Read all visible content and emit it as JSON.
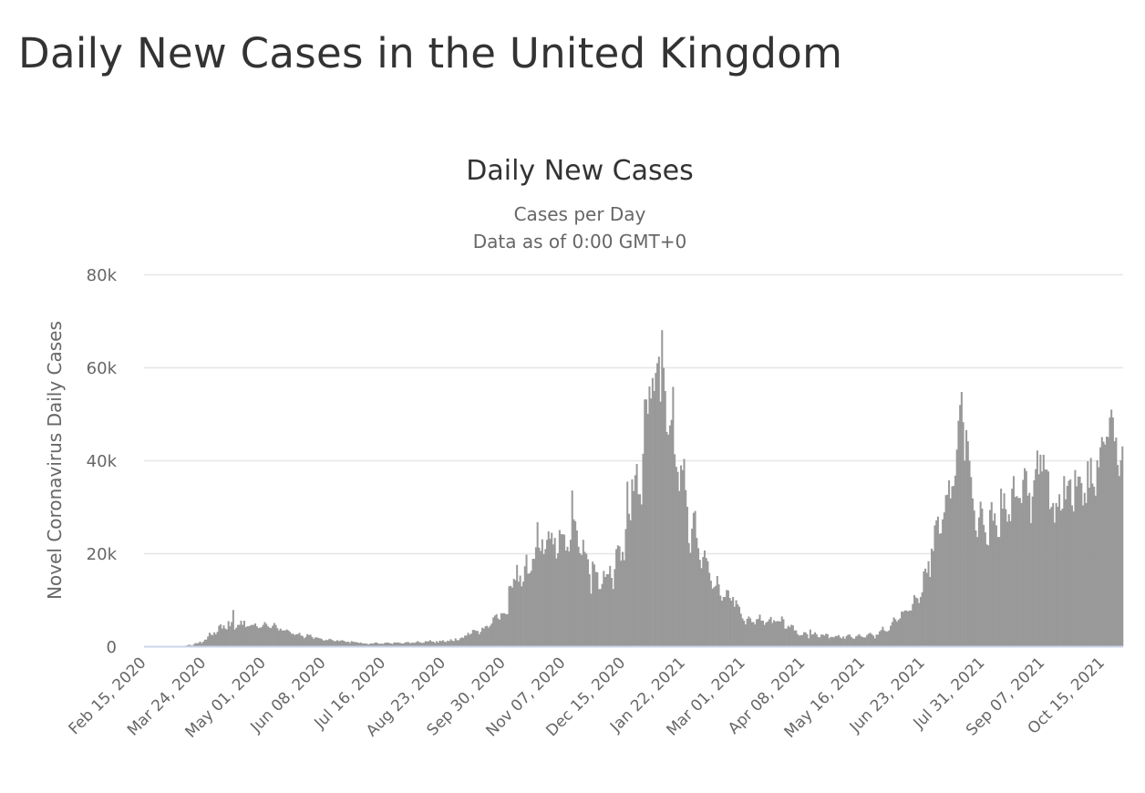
{
  "page": {
    "title": "Daily New Cases in the United Kingdom"
  },
  "chart_data": {
    "type": "bar",
    "title": "Daily New Cases",
    "subtitle": [
      "Cases per Day",
      "Data as of 0:00 GMT+0"
    ],
    "ylabel": "Novel Coronavirus Daily Cases",
    "xlabel": "",
    "ylim": [
      0,
      80000
    ],
    "yticks": [
      0,
      20000,
      40000,
      60000,
      80000
    ],
    "ytick_labels": [
      "0",
      "20k",
      "40k",
      "60k",
      "80k"
    ],
    "grid": true,
    "start_date": "Feb 15, 2020",
    "end_date": "Oct 27, 2021",
    "xtick_every_days": 38,
    "xtick_labels": [
      "Feb 15, 2020",
      "Mar 24, 2020",
      "May 01, 2020",
      "Jun 08, 2020",
      "Jul 16, 2020",
      "Aug 23, 2020",
      "Sep 30, 2020",
      "Nov 07, 2020",
      "Dec 15, 2020",
      "Jan 22, 2021",
      "Mar 01, 2021",
      "Apr 08, 2021",
      "May 16, 2021",
      "Jun 23, 2021",
      "Jul 31, 2021",
      "Sep 07, 2021",
      "Oct 15, 2021"
    ],
    "bar_color": "#999999",
    "values": [
      0,
      0,
      0,
      0,
      0,
      0,
      0,
      0,
      0,
      4,
      0,
      3,
      2,
      3,
      12,
      13,
      13,
      4,
      11,
      34,
      30,
      48,
      43,
      67,
      48,
      60,
      130,
      210,
      340,
      250,
      150,
      400,
      680,
      640,
      710,
      1000,
      670,
      970,
      1400,
      1450,
      2100,
      2900,
      2500,
      2400,
      3000,
      2600,
      3100,
      4400,
      4700,
      3800,
      4500,
      3800,
      3600,
      5400,
      4300,
      5200,
      7800,
      3600,
      4000,
      4600,
      4600,
      5500,
      4600,
      5500,
      4100,
      4300,
      4300,
      4500,
      4600,
      4600,
      4900,
      4300,
      3900,
      4000,
      4100,
      4600,
      5200,
      4800,
      4300,
      4000,
      3900,
      4400,
      5000,
      4600,
      3900,
      3400,
      3800,
      3400,
      3400,
      3400,
      3600,
      3400,
      3100,
      2700,
      2700,
      2400,
      2600,
      2600,
      2900,
      2300,
      2200,
      1700,
      2000,
      2600,
      2400,
      2500,
      2000,
      1600,
      1900,
      1900,
      1800,
      1700,
      1600,
      1300,
      1200,
      1400,
      1300,
      1600,
      1500,
      1300,
      1100,
      1100,
      1300,
      1100,
      1200,
      1300,
      1200,
      1000,
      900,
      1000,
      700,
      1100,
      1000,
      900,
      900,
      800,
      700,
      800,
      600,
      600,
      600,
      500,
      400,
      600,
      600,
      600,
      800,
      800,
      600,
      500,
      600,
      500,
      700,
      800,
      800,
      700,
      600,
      500,
      800,
      800,
      800,
      800,
      700,
      600,
      600,
      800,
      900,
      900,
      700,
      700,
      800,
      700,
      900,
      1100,
      900,
      800,
      700,
      800,
      1100,
      1000,
      1100,
      1300,
      1000,
      1000,
      700,
      1100,
      800,
      1200,
      1100,
      1300,
      1000,
      900,
      1200,
      1100,
      1500,
      1200,
      1100,
      1700,
      1300,
      1300,
      1700,
      1900,
      1800,
      2300,
      2300,
      2900,
      2500,
      2700,
      3500,
      3500,
      3300,
      3300,
      2600,
      3100,
      4000,
      3800,
      4300,
      4400,
      4000,
      4400,
      4900,
      6200,
      6600,
      6900,
      6000,
      5700,
      7100,
      7100,
      7100,
      6900,
      6900,
      12900,
      13000,
      12600,
      14500,
      14200,
      17500,
      13900,
      15200,
      12900,
      13900,
      17200,
      19700,
      15600,
      15700,
      16200,
      18800,
      18800,
      21300,
      26700,
      21200,
      20500,
      23000,
      19800,
      20900,
      22900,
      24700,
      23100,
      24400,
      21900,
      23300,
      18900,
      20000,
      25000,
      24100,
      24100,
      24000,
      20600,
      21400,
      20400,
      22900,
      33500,
      27300,
      26900,
      24900,
      21400,
      20000,
      19600,
      22900,
      20300,
      19900,
      18700,
      15500,
      11300,
      18200,
      17600,
      16000,
      15900,
      12300,
      12300,
      13400,
      16200,
      14900,
      15500,
      15500,
      17300,
      14700,
      12300,
      16600,
      20900,
      21700,
      21500,
      18400,
      20300,
      18500,
      25200,
      35400,
      28500,
      27100,
      35900,
      33400,
      36800,
      39200,
      32700,
      32700,
      30500,
      41400,
      53100,
      53100,
      50000,
      55900,
      53300,
      57700,
      54900,
      58800,
      60900,
      62300,
      52600,
      68000,
      59900,
      54900,
      46100,
      45500,
      47500,
      48700,
      55800,
      41300,
      38600,
      37500,
      33400,
      38900,
      37900,
      40300,
      33600,
      30000,
      22200,
      20100,
      25300,
      28700,
      29100,
      23300,
      21100,
      18600,
      16800,
      19200,
      20600,
      19000,
      18300,
      15800,
      14100,
      12400,
      12700,
      13000,
      15100,
      13300,
      10900,
      9800,
      10600,
      10600,
      12100,
      12000,
      10400,
      9800,
      10600,
      8500,
      9900,
      9000,
      8500,
      7000,
      6000,
      5500,
      4700,
      5900,
      6400,
      6000,
      5200,
      5200,
      4700,
      5800,
      5900,
      6800,
      5500,
      5500,
      4600,
      5100,
      5300,
      5800,
      6300,
      5000,
      5600,
      5300,
      5400,
      5400,
      5300,
      6400,
      5800,
      3800,
      3800,
      4400,
      4100,
      4600,
      4500,
      3400,
      3400,
      2600,
      2300,
      2400,
      2400,
      3000,
      3000,
      2600,
      1700,
      3600,
      2500,
      2600,
      3000,
      2600,
      2000,
      1900,
      2500,
      2500,
      2300,
      2700,
      2600,
      1700,
      2000,
      2000,
      1900,
      2200,
      2200,
      2400,
      1900,
      1700,
      2100,
      1600,
      2200,
      2500,
      2500,
      2000,
      1700,
      1600,
      2100,
      2300,
      2600,
      2200,
      2000,
      1900,
      1900,
      2400,
      2700,
      2900,
      2600,
      2300,
      1700,
      2500,
      2500,
      3200,
      3500,
      4200,
      3400,
      3200,
      3200,
      3400,
      4400,
      5200,
      6200,
      5800,
      5300,
      5700,
      6000,
      7500,
      7400,
      7700,
      7700,
      7500,
      7700,
      7700,
      9100,
      11000,
      10500,
      10300,
      9300,
      10600,
      11600,
      16100,
      16700,
      15800,
      18300,
      14900,
      21000,
      20500,
      26000,
      27100,
      27900,
      24200,
      24300,
      27300,
      28800,
      32500,
      32600,
      35700,
      31800,
      34400,
      34500,
      36700,
      42300,
      48500,
      51900,
      54700,
      48200,
      39900,
      46500,
      44100,
      39900,
      36400,
      31800,
      29200,
      24900,
      23500,
      27700,
      31100,
      29600,
      26100,
      24500,
      21900,
      21700,
      29300,
      31000,
      27000,
      28600,
      26000,
      23500,
      23500,
      33900,
      29600,
      32900,
      29500,
      26800,
      28400,
      26900,
      33900,
      36600,
      32100,
      32300,
      31900,
      31900,
      30800,
      35800,
      38300,
      37700,
      32400,
      33000,
      26500,
      32200,
      35700,
      38100,
      42100,
      37000,
      41200,
      37600,
      41200,
      38000,
      38000,
      37600,
      29500,
      30000,
      30800,
      26600,
      30800,
      30000,
      32700,
      29200,
      29600,
      36600,
      31600,
      34500,
      35600,
      35900,
      30300,
      29000,
      37900,
      34400,
      36500,
      36500,
      35100,
      30300,
      33000,
      30800,
      39800,
      34100,
      40500,
      35000,
      34300,
      32400,
      40000,
      38500,
      42800,
      45000,
      44000,
      43400,
      45100,
      45000,
      49200,
      50900,
      49200,
      44100,
      44900,
      39000,
      36600,
      40000,
      43000
    ]
  }
}
